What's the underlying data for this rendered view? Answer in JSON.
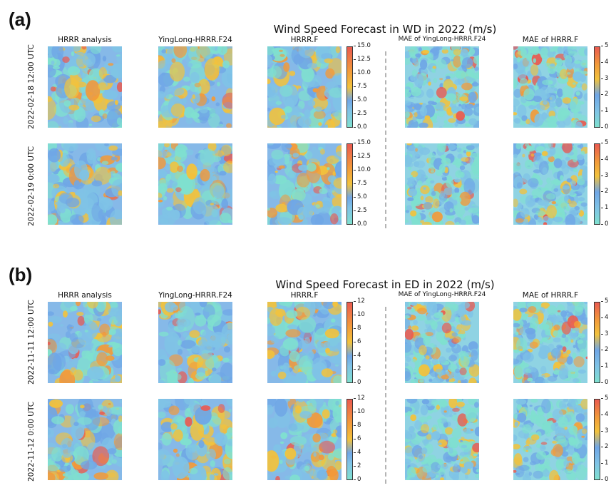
{
  "chart_data": [
    {
      "type": "heatmap",
      "panel_label": "(a)",
      "title": "Wind Speed Forecast in WD in 2022 (m/s)",
      "columns": [
        "HRRR analysis",
        "YingLong-HRRR.F24",
        "HRRR.F",
        "MAE of YingLong-HRRR.F24",
        "MAE of HRRR.F"
      ],
      "rows": [
        "2022-02-18 12:00 UTC",
        "2022-02-19 0:00 UTC"
      ],
      "wind_colorbar": {
        "min": 0,
        "max": 15,
        "ticks": [
          "0.0",
          "2.5",
          "5.0",
          "7.5",
          "10.0",
          "12.5",
          "15.0"
        ]
      },
      "mae_colorbar": {
        "min": 0,
        "max": 5,
        "ticks": [
          "0",
          "1",
          "2",
          "3",
          "4",
          "5"
        ]
      }
    },
    {
      "type": "heatmap",
      "panel_label": "(b)",
      "title": "Wind Speed Forecast in ED in 2022 (m/s)",
      "columns": [
        "HRRR analysis",
        "YingLong-HRRR.F24",
        "HRRR.F",
        "MAE of YingLong-HRRR.F24",
        "MAE of HRRR.F"
      ],
      "rows": [
        "2022-11-11 12:00 UTC",
        "2022-11-12 0:00 UTC"
      ],
      "wind_colorbar": {
        "min": 0,
        "max": 12,
        "ticks": [
          "0",
          "2",
          "4",
          "6",
          "8",
          "10",
          "12"
        ]
      },
      "mae_colorbar": {
        "min": 0,
        "max": 5,
        "ticks": [
          "0",
          "1",
          "2",
          "3",
          "4",
          "5"
        ]
      }
    }
  ],
  "colormap": [
    "#7fe0cf",
    "#7fc3e6",
    "#6fa6e6",
    "#f2c23c",
    "#f29a3a",
    "#ea5a50"
  ]
}
